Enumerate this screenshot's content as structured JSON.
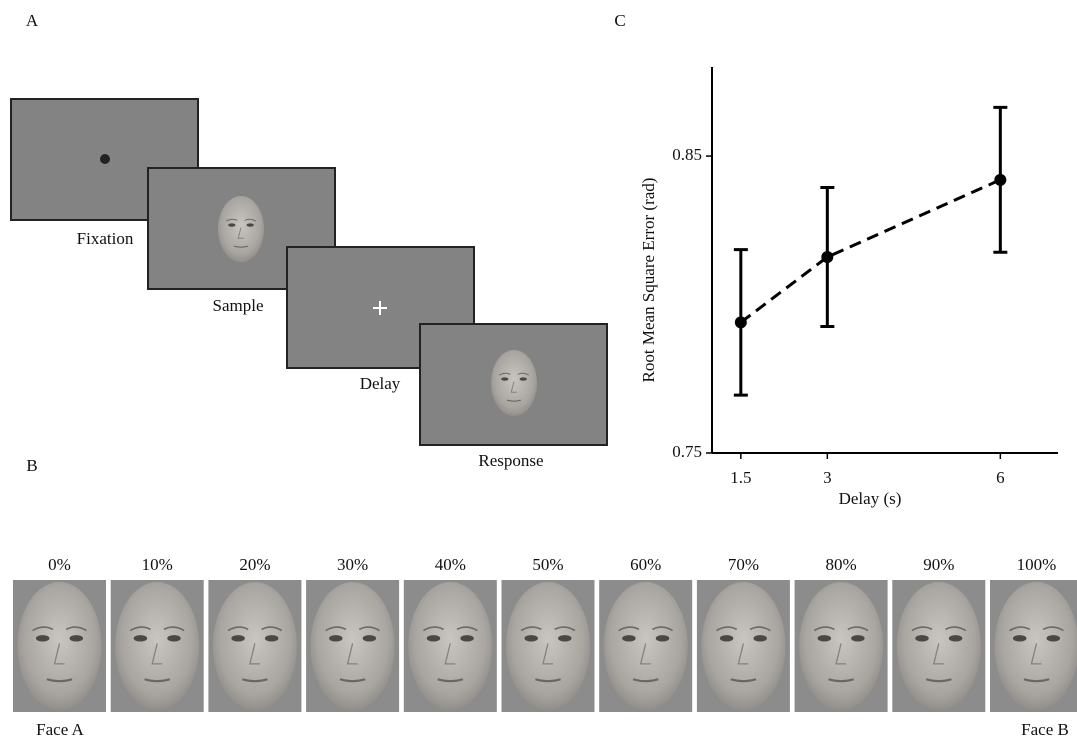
{
  "panel_labels": [
    "A",
    "B",
    "C"
  ],
  "panel_a": {
    "screens": [
      "Fixation",
      "Sample",
      "Delay",
      "Response"
    ]
  },
  "panel_b": {
    "morph_levels": [
      "0%",
      "10%",
      "20%",
      "30%",
      "40%",
      "50%",
      "60%",
      "70%",
      "80%",
      "90%",
      "100%"
    ],
    "left_label": "Face A",
    "right_label": "Face B"
  },
  "chart_data": {
    "type": "errorbar",
    "x_label": "Delay (s)",
    "y_label": "Root Mean Square Error (rad)",
    "x": [
      1.5,
      3,
      6
    ],
    "values": [
      0.794,
      0.816,
      0.842
    ],
    "errors": [
      0.0245,
      0.0234,
      0.0244
    ],
    "color": "#000000",
    "line_style": "dashed",
    "xlim": [
      1,
      7
    ],
    "ylim": [
      0.75,
      0.88
    ],
    "xticks": [
      1.5,
      3,
      6
    ],
    "yticks": [
      0.75,
      0.85
    ]
  }
}
